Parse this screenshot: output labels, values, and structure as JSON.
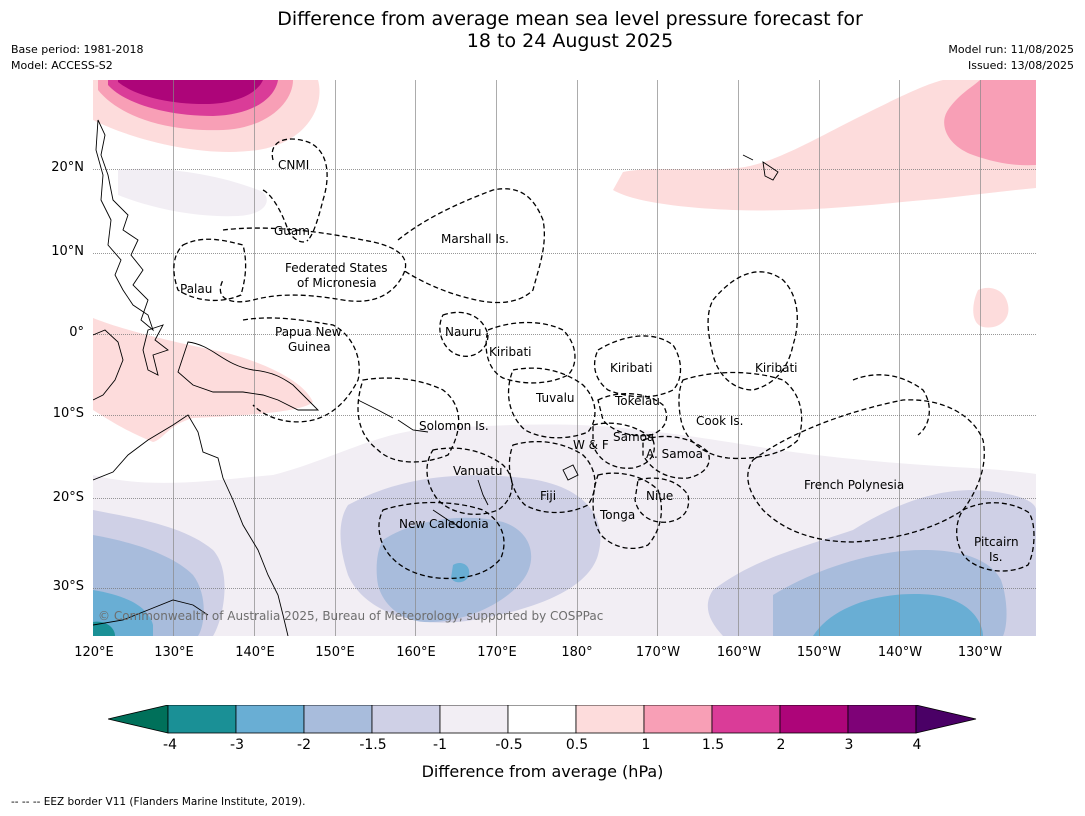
{
  "title_line1": "Difference from average mean sea level pressure forecast for",
  "title_line2": "18 to 24 August 2025",
  "meta_left": {
    "base_period": "Base period: 1981-2018",
    "model": "Model: ACCESS-S2"
  },
  "meta_right": {
    "model_run": "Model run: 11/08/2025",
    "issued": "Issued: 13/08/2025"
  },
  "lat_labels": [
    "20°N",
    "10°N",
    "0°",
    "10°S",
    "20°S",
    "30°S"
  ],
  "lon_labels": [
    "120°E",
    "130°E",
    "140°E",
    "150°E",
    "160°E",
    "170°E",
    "180°",
    "170°W",
    "160°W",
    "150°W",
    "140°W",
    "130°W"
  ],
  "places": {
    "cnmi": "CNMI",
    "guam": "Guam",
    "marshall": "Marshall Is.",
    "fsm1": "Federated States",
    "fsm2": "of Micronesia",
    "palau": "Palau",
    "png1": "Papua New",
    "png2": "Guinea",
    "nauru": "Nauru",
    "kiribati_w": "Kiribati",
    "kiribati_c": "Kiribati",
    "kiribati_e": "Kiribati",
    "tuvalu": "Tuvalu",
    "tokelau": "Tokelau",
    "solomon": "Solomon Is.",
    "wf": "W & F",
    "samoa": "Samoa",
    "asamoa": "A. Samoa",
    "cook": "Cook Is.",
    "vanuatu": "Vanuatu",
    "fiji": "Fiji",
    "niue": "Niue",
    "tonga": "Tonga",
    "new_caledonia": "New Caledonia",
    "french_polynesia": "French Polynesia",
    "pitcairn1": "Pitcairn",
    "pitcairn2": "Is."
  },
  "copyright": "© Commonwealth of Australia 2025, Bureau of Meteorology, supported by COSPPac",
  "colorbar": {
    "ticks": [
      "-4",
      "-3",
      "-2",
      "-1.5",
      "-1",
      "-0.5",
      "0.5",
      "1",
      "1.5",
      "2",
      "3",
      "4"
    ],
    "colors": [
      "#1a9096",
      "#69aed4",
      "#a8bcdc",
      "#cfd0e6",
      "#f2eef4",
      "#ffffff",
      "#fddcdc",
      "#f89fb6",
      "#da3c98",
      "#ad0579",
      "#7e0277"
    ],
    "under_color": "#00705a",
    "over_color": "#4a0066",
    "label": "Difference from average (hPa)"
  },
  "legend_line": "--  --  -- EEZ border V11 (Flanders Marine Institute, 2019)."
}
